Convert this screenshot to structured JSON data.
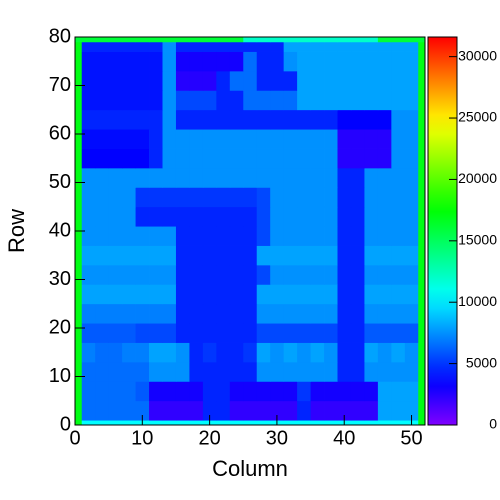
{
  "chart_data": {
    "type": "heatmap",
    "xlabel": "Column",
    "ylabel": "Row",
    "xlim": [
      0,
      52
    ],
    "ylim": [
      0,
      80
    ],
    "zlim": [
      0,
      31600
    ],
    "xticks": [
      0,
      10,
      20,
      30,
      40,
      50
    ],
    "yticks": [
      0,
      10,
      20,
      30,
      40,
      50,
      60,
      70,
      80
    ],
    "zticks": [
      0,
      5000,
      10000,
      15000,
      20000,
      25000,
      30000
    ],
    "xbins": [
      0,
      1,
      3,
      5,
      7,
      9,
      11,
      13,
      15,
      17,
      19,
      21,
      23,
      25,
      27,
      29,
      31,
      33,
      35,
      37,
      39,
      41,
      43,
      45,
      47,
      49,
      51,
      52
    ],
    "ybins": [
      0,
      1,
      5,
      9,
      13,
      17,
      21,
      25,
      29,
      33,
      37,
      41,
      45,
      49,
      53,
      57,
      61,
      65,
      69,
      73,
      77,
      79,
      80
    ],
    "z": [
      [
        17000,
        10500,
        10500,
        10500,
        10500,
        10500,
        10500,
        10500,
        10500,
        10500,
        10500,
        10500,
        10500,
        10500,
        10500,
        10500,
        10500,
        10500,
        10500,
        10500,
        10500,
        10500,
        10500,
        10500,
        10500,
        10500,
        17000
      ],
      [
        17000,
        6500,
        6500,
        6500,
        6500,
        6500,
        2200,
        2200,
        2200,
        2200,
        4500,
        4500,
        2200,
        2200,
        2200,
        2200,
        2200,
        4500,
        2200,
        2200,
        2200,
        2200,
        2200,
        8000,
        8000,
        8000,
        17000
      ],
      [
        17000,
        6500,
        6500,
        6500,
        6500,
        6000,
        3000,
        3000,
        3000,
        3000,
        4500,
        4500,
        3000,
        3000,
        3000,
        3000,
        3000,
        5000,
        3000,
        3000,
        3000,
        3000,
        3000,
        8000,
        8000,
        8000,
        17000
      ],
      [
        17000,
        6500,
        6500,
        6500,
        6500,
        6500,
        7500,
        7500,
        7500,
        4500,
        4500,
        4500,
        4500,
        4500,
        7500,
        7500,
        7500,
        7500,
        7500,
        7500,
        4500,
        4500,
        7500,
        7500,
        7500,
        7500,
        17000
      ],
      [
        17000,
        7000,
        6500,
        6500,
        7000,
        7000,
        8000,
        8000,
        7500,
        4500,
        5000,
        4500,
        4500,
        5000,
        8000,
        7500,
        8000,
        7500,
        8000,
        7500,
        4500,
        4500,
        8000,
        7500,
        8000,
        7500,
        17000
      ],
      [
        17000,
        6000,
        6000,
        6000,
        6000,
        5500,
        5500,
        5500,
        4500,
        4500,
        4500,
        4500,
        4500,
        4500,
        5500,
        5500,
        5500,
        5500,
        5500,
        5500,
        4500,
        4500,
        6000,
        6000,
        6000,
        6000,
        17000
      ],
      [
        17000,
        7000,
        7000,
        7000,
        7000,
        7000,
        7000,
        7000,
        4500,
        4500,
        4500,
        4500,
        4500,
        4500,
        7500,
        7500,
        7500,
        7500,
        7500,
        7500,
        4500,
        4500,
        7500,
        7500,
        7500,
        7500,
        17000
      ],
      [
        17000,
        8000,
        8000,
        8000,
        8000,
        8000,
        8000,
        8000,
        4500,
        4500,
        4500,
        4500,
        4500,
        4500,
        8000,
        8000,
        8000,
        8000,
        8000,
        8000,
        4500,
        4500,
        8000,
        8000,
        8000,
        8000,
        17000
      ],
      [
        17000,
        7500,
        7500,
        7500,
        7500,
        7500,
        7500,
        7500,
        4500,
        4500,
        4500,
        4500,
        4500,
        4500,
        5500,
        7500,
        7500,
        7500,
        7500,
        7500,
        4500,
        4500,
        7500,
        7500,
        7500,
        7500,
        17000
      ],
      [
        17000,
        8000,
        8000,
        8000,
        8000,
        8000,
        8000,
        8000,
        4500,
        4500,
        4500,
        4500,
        4500,
        4500,
        8000,
        8000,
        8000,
        8000,
        8000,
        8000,
        4500,
        4500,
        8000,
        8000,
        8000,
        8000,
        17000
      ],
      [
        17000,
        7500,
        7500,
        7500,
        7500,
        7500,
        7500,
        7500,
        4500,
        4500,
        4500,
        4500,
        4500,
        4500,
        5500,
        7500,
        7500,
        7500,
        7500,
        7500,
        4500,
        4500,
        7500,
        7500,
        7500,
        7500,
        17000
      ],
      [
        17000,
        7500,
        7500,
        7500,
        7500,
        4500,
        4500,
        4500,
        4500,
        4500,
        4500,
        4500,
        4500,
        4500,
        5500,
        7500,
        7500,
        7500,
        7500,
        7500,
        4500,
        4500,
        7500,
        7500,
        7500,
        7500,
        17000
      ],
      [
        17000,
        7500,
        7500,
        7500,
        7500,
        5000,
        5000,
        5000,
        5000,
        5000,
        5000,
        5000,
        5000,
        5000,
        5500,
        7500,
        7500,
        7500,
        7500,
        7500,
        4500,
        4500,
        7500,
        7500,
        7500,
        7500,
        17000
      ],
      [
        17000,
        7500,
        7500,
        7500,
        7500,
        7500,
        7500,
        7500,
        7500,
        7500,
        7500,
        7500,
        7500,
        7500,
        7500,
        7500,
        7500,
        7500,
        7500,
        7500,
        4500,
        4500,
        7500,
        7500,
        7500,
        7500,
        17000
      ],
      [
        17000,
        3500,
        3500,
        3500,
        3500,
        3500,
        4500,
        7500,
        7500,
        7500,
        7500,
        7500,
        7500,
        7500,
        7500,
        7500,
        7500,
        7500,
        7500,
        7500,
        2500,
        2500,
        2500,
        2500,
        7500,
        7500,
        17000
      ],
      [
        17000,
        3800,
        3800,
        3800,
        3800,
        3800,
        4500,
        7500,
        7500,
        7500,
        7500,
        7500,
        7500,
        7500,
        7500,
        7500,
        7500,
        7500,
        7500,
        7500,
        2500,
        2500,
        2500,
        2500,
        7500,
        7500,
        17000
      ],
      [
        17000,
        4500,
        4500,
        4500,
        4500,
        4500,
        4500,
        7500,
        4500,
        4500,
        4500,
        4500,
        4500,
        4500,
        4500,
        4500,
        4500,
        4500,
        4500,
        4500,
        3500,
        3500,
        3500,
        3500,
        7500,
        7500,
        17000
      ],
      [
        17000,
        4000,
        4000,
        4000,
        4000,
        4000,
        4000,
        7500,
        5500,
        5500,
        5500,
        4500,
        4500,
        6500,
        6500,
        6500,
        6500,
        8000,
        8000,
        8000,
        8000,
        8000,
        8000,
        8000,
        8000,
        8000,
        17000
      ],
      [
        17000,
        4000,
        4000,
        4000,
        4000,
        4000,
        4000,
        7500,
        2500,
        2500,
        2500,
        4500,
        6500,
        6500,
        4500,
        4500,
        4500,
        8000,
        8000,
        8000,
        8000,
        8000,
        8000,
        8000,
        8000,
        8000,
        17000
      ],
      [
        17000,
        4000,
        4000,
        4000,
        4000,
        4000,
        4000,
        7500,
        3000,
        3000,
        3000,
        3000,
        3000,
        6500,
        4500,
        4500,
        7500,
        8000,
        8000,
        8000,
        8000,
        8000,
        8000,
        8000,
        8000,
        8000,
        17000
      ],
      [
        17000,
        4500,
        4500,
        4500,
        4500,
        4500,
        4500,
        7500,
        4500,
        4500,
        4500,
        4500,
        4500,
        4500,
        4500,
        4500,
        8000,
        8000,
        8000,
        8000,
        8000,
        8000,
        8000,
        8000,
        8000,
        8000,
        17000
      ],
      [
        16000,
        16000,
        16000,
        16000,
        16000,
        16000,
        16000,
        16000,
        16000,
        16000,
        16000,
        16000,
        16000,
        12000,
        12000,
        12000,
        12000,
        12000,
        12000,
        12000,
        12000,
        12000,
        12000,
        16000,
        16000,
        16000,
        16000
      ]
    ]
  }
}
